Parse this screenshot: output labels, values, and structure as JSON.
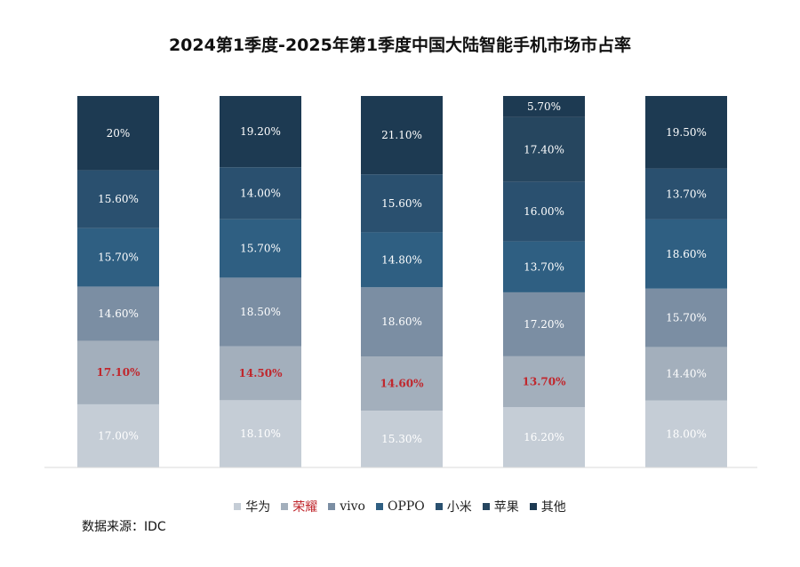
{
  "chart_data": {
    "type": "bar",
    "stacked": true,
    "title": "2024第1季度-2025年第1季度中国大陆智能手机市场市占率",
    "categories": [
      "",
      "",
      "",
      "",
      ""
    ],
    "series": [
      {
        "name": "华为",
        "color": "#c5cdd6",
        "label_color": "#ffffff",
        "values": [
          17.0,
          18.1,
          15.3,
          16.2,
          18.0
        ],
        "labels": [
          "17.00%",
          "18.10%",
          "15.30%",
          "16.20%",
          "18.00%"
        ]
      },
      {
        "name": "荣耀",
        "color": "#a3afbc",
        "label_color": "#c0272d",
        "legend_color": "#c0272d",
        "values": [
          17.1,
          14.5,
          14.6,
          13.7,
          14.4
        ],
        "labels": [
          "17.10%",
          "14.50%",
          "14.60%",
          "13.70%",
          "14.40%"
        ],
        "label_colors": [
          "#c0272d",
          "#c0272d",
          "#c0272d",
          "#c0272d",
          "#ffffff"
        ]
      },
      {
        "name": "vivo",
        "color": "#7b8ea3",
        "label_color": "#ffffff",
        "values": [
          14.6,
          18.5,
          18.6,
          17.2,
          15.7
        ],
        "labels": [
          "14.60%",
          "18.50%",
          "18.60%",
          "17.20%",
          "15.70%"
        ]
      },
      {
        "name": "OPPO",
        "color": "#2f5f82",
        "label_color": "#ffffff",
        "values": [
          15.7,
          15.7,
          14.8,
          13.7,
          18.6
        ],
        "labels": [
          "15.70%",
          "15.70%",
          "14.80%",
          "13.70%",
          "18.60%"
        ]
      },
      {
        "name": "小米",
        "color": "#2a506f",
        "label_color": "#ffffff",
        "values": [
          15.6,
          14.0,
          15.6,
          16.0,
          13.7
        ],
        "labels": [
          "15.60%",
          "14.00%",
          "15.60%",
          "16.00%",
          "13.70%"
        ]
      },
      {
        "name": "苹果",
        "color": "#26465f",
        "label_color": "#ffffff",
        "values": [
          null,
          null,
          null,
          17.4,
          null
        ],
        "labels": [
          "",
          "",
          "",
          "17.40%",
          ""
        ]
      },
      {
        "name": "其他",
        "color": "#1d3a52",
        "label_color": "#ffffff",
        "values": [
          20.0,
          19.2,
          21.1,
          5.7,
          19.5
        ],
        "labels": [
          "20%",
          "19.20%",
          "21.10%",
          "5.70%",
          "19.50%"
        ]
      }
    ],
    "ylim": [
      0,
      100
    ],
    "grid": false,
    "legend_position": "bottom"
  },
  "source": "数据来源：IDC"
}
